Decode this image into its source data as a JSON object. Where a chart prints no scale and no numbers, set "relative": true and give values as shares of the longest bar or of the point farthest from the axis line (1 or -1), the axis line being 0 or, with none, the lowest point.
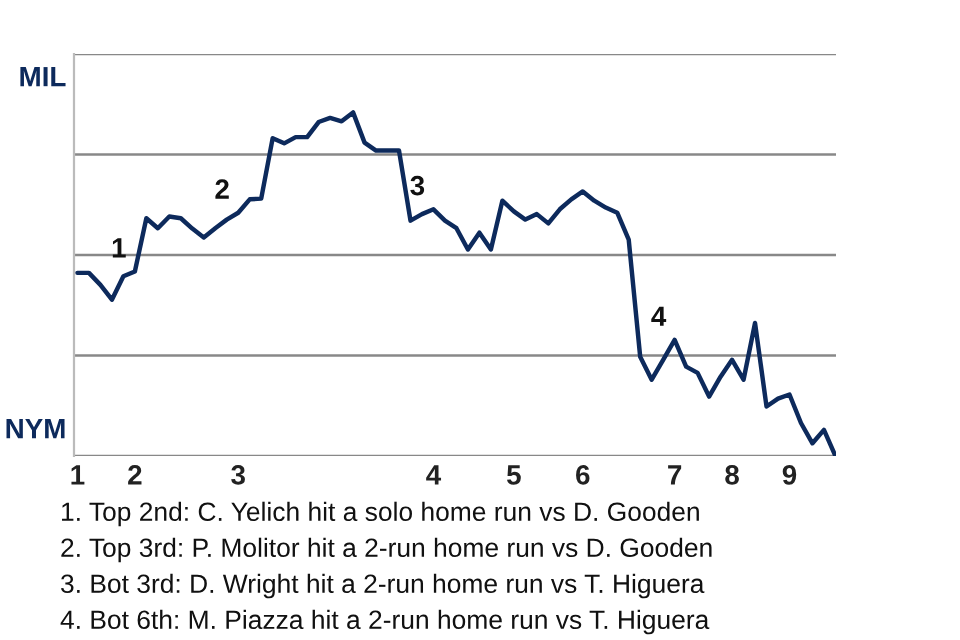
{
  "chart_data": {
    "type": "line",
    "relative": true,
    "categories": [
      "1",
      null,
      null,
      null,
      null,
      "2",
      null,
      null,
      null,
      null,
      null,
      null,
      null,
      null,
      "3",
      null,
      null,
      null,
      null,
      null,
      null,
      null,
      null,
      null,
      null,
      null,
      null,
      null,
      null,
      null,
      null,
      "4",
      null,
      null,
      null,
      null,
      null,
      null,
      "5",
      null,
      null,
      null,
      null,
      null,
      "6",
      null,
      null,
      null,
      null,
      null,
      null,
      null,
      "7",
      null,
      null,
      null,
      null,
      "8",
      null,
      null,
      null,
      null,
      "9",
      null,
      null,
      null,
      null
    ],
    "series": [
      {
        "color": "#0d2a5c",
        "values": [
          0.533,
          0.533,
          0.498,
          0.455,
          0.523,
          0.537,
          0.692,
          0.663,
          0.697,
          0.692,
          0.662,
          0.636,
          0.663,
          0.688,
          0.708,
          0.747,
          0.749,
          0.925,
          0.91,
          0.928,
          0.928,
          0.972,
          0.984,
          0.974,
          1,
          0.912,
          0.889,
          0.889,
          0.889,
          0.685,
          0.704,
          0.718,
          0.685,
          0.663,
          0.601,
          0.65,
          0.601,
          0.743,
          0.712,
          0.688,
          0.704,
          0.677,
          0.718,
          0.747,
          0.77,
          0.743,
          0.723,
          0.708,
          0.63,
          0.289,
          0.222,
          0.28,
          0.338,
          0.26,
          0.242,
          0.173,
          0.231,
          0.28,
          0.222,
          0.387,
          0.144,
          0.167,
          0.179,
          0.096,
          0.037,
          0.076,
          0
        ]
      }
    ],
    "grid": "y",
    "legend": false,
    "marker": "none",
    "line_style": "solid",
    "annotations": [
      "MIL",
      "NYM",
      {
        "text": "1",
        "x": "2",
        "y": 0.537
      },
      {
        "text": "2",
        "x": "3",
        "y": 0.708
      },
      {
        "text": "3",
        "x": "4",
        "y": 0.718
      },
      {
        "text": "4",
        "x": "7",
        "y": 0.338
      },
      "1. Top 2nd: C. Yelich hit a solo home run vs D. Gooden",
      "2. Top 3rd: P. Molitor hit a 2-run home run vs D. Gooden",
      "3. Bot 3rd: D. Wright hit a 2-run home run vs T. Higuera",
      "4. Bot 6th: M. Piazza hit a 2-run home run vs T. Higuera"
    ]
  }
}
